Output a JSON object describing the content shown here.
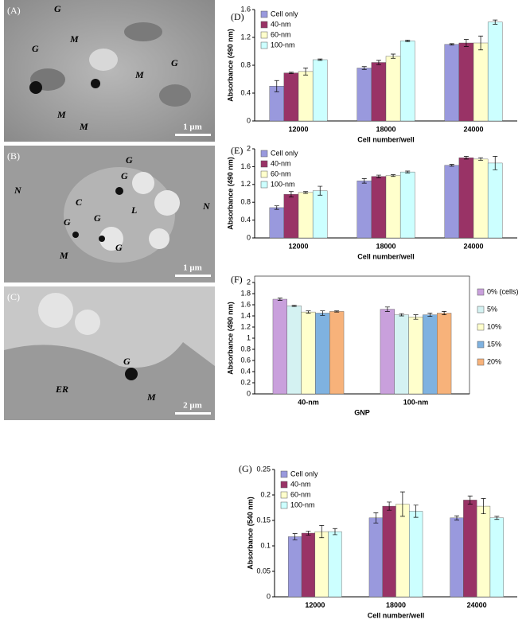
{
  "images": [
    {
      "panel": "(A)",
      "scale": "1 μm",
      "labels": [
        "G",
        "M",
        "G",
        "M",
        "M",
        "M",
        "G"
      ]
    },
    {
      "panel": "(B)",
      "scale": "1 μm",
      "labels": [
        "N",
        "N",
        "C",
        "G",
        "G",
        "G",
        "L",
        "G",
        "G",
        "M"
      ]
    },
    {
      "panel": "(C)",
      "scale": "2 μm",
      "labels": [
        "G",
        "ER",
        "M"
      ]
    }
  ],
  "chart_data": [
    {
      "type": "bar",
      "panel": "(D)",
      "ylabel": "Absorbance (490 nm)",
      "xlabel": "Cell number/well",
      "legend": "upper left",
      "categories": [
        "12000",
        "18000",
        "24000"
      ],
      "ylim": [
        0,
        1.6
      ],
      "yticks": [
        0,
        0.4,
        0.8,
        1.2,
        1.6
      ],
      "series": [
        {
          "name": "Cell only",
          "color": "#9999dd",
          "values": [
            0.5,
            0.76,
            1.1
          ],
          "errors": [
            0.08,
            0.02,
            0.01
          ]
        },
        {
          "name": "40-nm",
          "color": "#993366",
          "values": [
            0.69,
            0.84,
            1.12
          ],
          "errors": [
            0.01,
            0.03,
            0.05
          ]
        },
        {
          "name": "60-nm",
          "color": "#ffffcc",
          "values": [
            0.71,
            0.93,
            1.12
          ],
          "errors": [
            0.05,
            0.03,
            0.1
          ]
        },
        {
          "name": "100-nm",
          "color": "#ccffff",
          "values": [
            0.88,
            1.15,
            1.42
          ],
          "errors": [
            0.01,
            0.01,
            0.03
          ]
        }
      ]
    },
    {
      "type": "bar",
      "panel": "(E)",
      "ylabel": "Absorbance (490 nm)",
      "xlabel": "Cell number/well",
      "legend": "upper left",
      "categories": [
        "12000",
        "18000",
        "24000"
      ],
      "ylim": [
        0,
        2
      ],
      "yticks": [
        0,
        0.4,
        0.8,
        1.2,
        1.6,
        2
      ],
      "series": [
        {
          "name": "Cell only",
          "color": "#9999dd",
          "values": [
            0.68,
            1.28,
            1.63
          ],
          "errors": [
            0.04,
            0.05,
            0.02
          ]
        },
        {
          "name": "40-nm",
          "color": "#993366",
          "values": [
            0.98,
            1.38,
            1.8
          ],
          "errors": [
            0.06,
            0.03,
            0.03
          ]
        },
        {
          "name": "60-nm",
          "color": "#ffffcc",
          "values": [
            1.02,
            1.4,
            1.77
          ],
          "errors": [
            0.02,
            0.02,
            0.03
          ]
        },
        {
          "name": "100-nm",
          "color": "#ccffff",
          "values": [
            1.06,
            1.48,
            1.68
          ],
          "errors": [
            0.1,
            0.02,
            0.15
          ]
        }
      ]
    },
    {
      "type": "bar",
      "panel": "(F)",
      "ylabel": "Absorbance (490 nm)",
      "xlabel": "GNP",
      "legend": "right",
      "categories": [
        "40-nm",
        "100-nm"
      ],
      "ylim": [
        0,
        2
      ],
      "yticks": [
        0,
        0.2,
        0.4,
        0.6,
        0.8,
        1,
        1.2,
        1.4,
        1.6,
        1.8,
        2
      ],
      "series": [
        {
          "name": "0% (cells)",
          "color": "#c9a0dc",
          "values": [
            1.7,
            1.52
          ],
          "errors": [
            0.02,
            0.04
          ]
        },
        {
          "name": "5%",
          "color": "#d4f2f2",
          "values": [
            1.58,
            1.42
          ],
          "errors": [
            0.01,
            0.02
          ]
        },
        {
          "name": "10%",
          "color": "#ffffcc",
          "values": [
            1.47,
            1.38
          ],
          "errors": [
            0.02,
            0.04
          ]
        },
        {
          "name": "15%",
          "color": "#7fb2e0",
          "values": [
            1.45,
            1.42
          ],
          "errors": [
            0.04,
            0.03
          ]
        },
        {
          "name": "20%",
          "color": "#f7b27a",
          "values": [
            1.48,
            1.45
          ],
          "errors": [
            0.01,
            0.03
          ]
        }
      ]
    },
    {
      "type": "bar",
      "panel": "(G)",
      "ylabel": "Absorbance (540 nm)",
      "xlabel": "Cell number/well",
      "legend": "upper left",
      "categories": [
        "12000",
        "18000",
        "24000"
      ],
      "ylim": [
        0,
        0.25
      ],
      "yticks": [
        0,
        0.05,
        0.1,
        0.15,
        0.2,
        0.25
      ],
      "series": [
        {
          "name": "Cell only",
          "color": "#9999dd",
          "values": [
            0.118,
            0.155,
            0.155
          ],
          "errors": [
            0.006,
            0.01,
            0.004
          ]
        },
        {
          "name": "40-nm",
          "color": "#993366",
          "values": [
            0.125,
            0.178,
            0.19
          ],
          "errors": [
            0.004,
            0.008,
            0.008
          ]
        },
        {
          "name": "60-nm",
          "color": "#ffffcc",
          "values": [
            0.128,
            0.182,
            0.178
          ],
          "errors": [
            0.012,
            0.024,
            0.015
          ]
        },
        {
          "name": "100-nm",
          "color": "#ccffff",
          "values": [
            0.128,
            0.168,
            0.155
          ],
          "errors": [
            0.006,
            0.012,
            0.003
          ]
        }
      ]
    }
  ]
}
